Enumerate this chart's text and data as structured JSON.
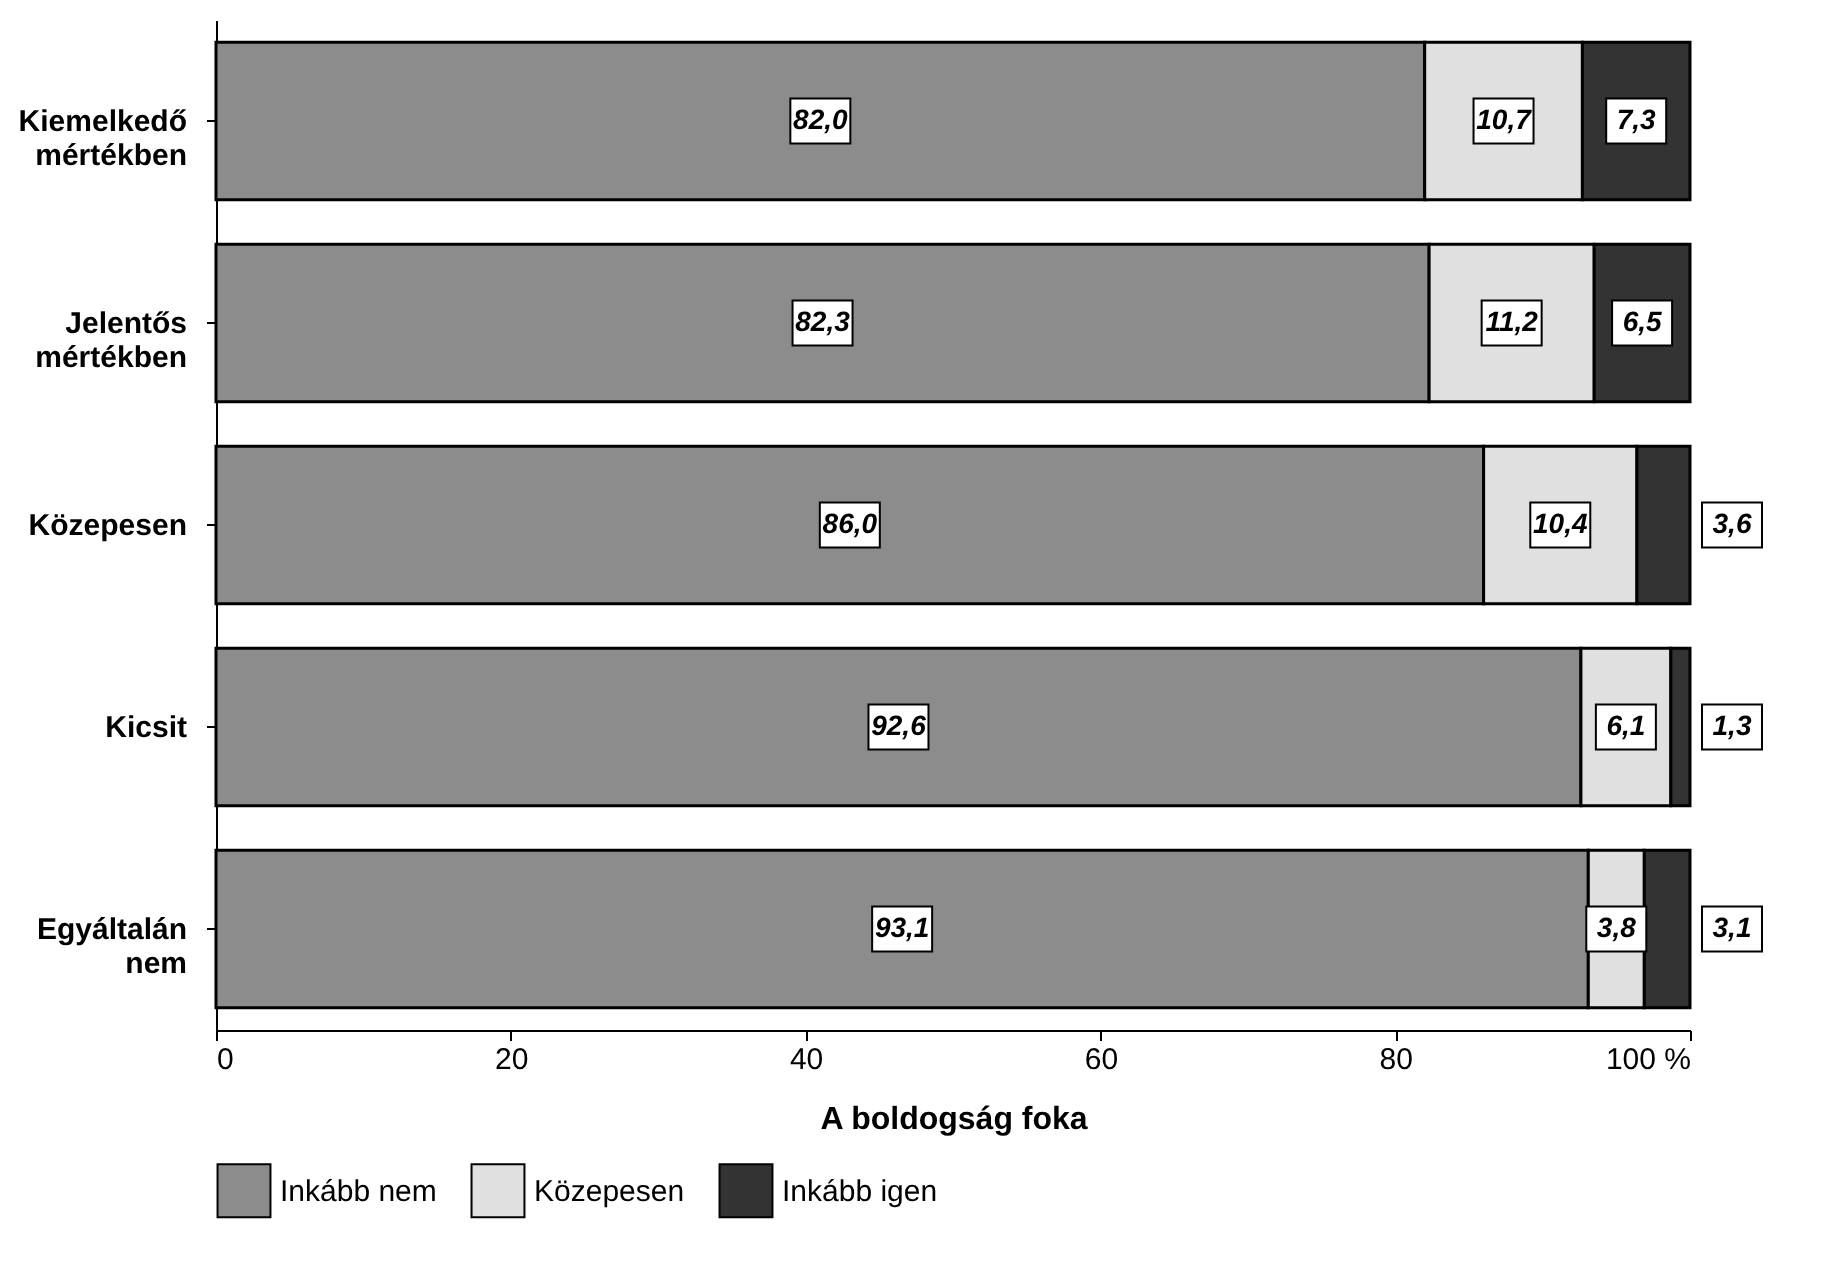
{
  "chart_data": {
    "type": "bar",
    "orientation": "horizontal",
    "stacked": true,
    "xlabel": "A boldogság foka",
    "categories": [
      "Kiemelkedő mértékben",
      "Jelentős mértékben",
      "Közepesen",
      "Kicsit",
      "Egyáltalán nem"
    ],
    "series": [
      {
        "name": "Inkább nem",
        "color": "#8c8c8c",
        "values": [
          82.0,
          82.3,
          86.0,
          92.6,
          93.1
        ],
        "value_labels": [
          "82,0",
          "82,3",
          "86,0",
          "92,6",
          "93,1"
        ]
      },
      {
        "name": "Közepesen",
        "color": "#e0e0e0",
        "values": [
          10.7,
          11.2,
          10.4,
          6.1,
          3.8
        ],
        "value_labels": [
          "10,7",
          "11,2",
          "10,4",
          "6,1",
          "3,8"
        ]
      },
      {
        "name": "Inkább igen",
        "color": "#333333",
        "values": [
          7.3,
          6.5,
          3.6,
          1.3,
          3.1
        ],
        "value_labels": [
          "7,3",
          "6,5",
          "3,6",
          "1,3",
          "3,1"
        ]
      }
    ],
    "xlim": [
      0,
      100
    ],
    "xticks": [
      0,
      20,
      40,
      60,
      80,
      {
        "value": 100,
        "label": "100 %"
      }
    ],
    "grid": false,
    "legend": "bottom"
  }
}
